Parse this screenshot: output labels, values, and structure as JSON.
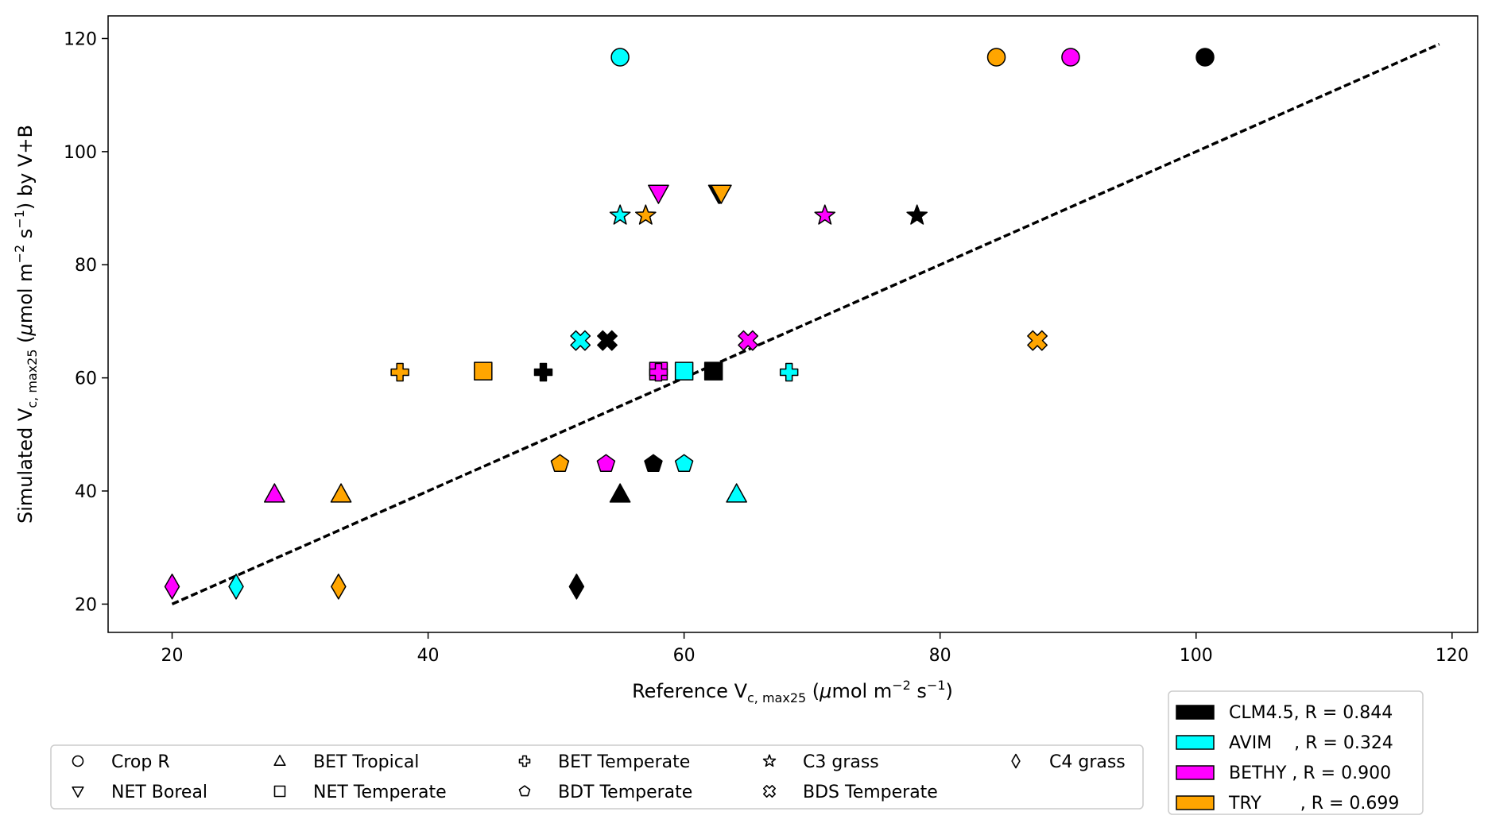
{
  "chart_data": {
    "type": "scatter",
    "title": "",
    "xlabel": {
      "prefix": "Reference V",
      "sub": "c, max25",
      "unit_open": " (",
      "mu": "μ",
      "unit_text": "mol m",
      "sup1": "−2",
      "s_text": " s",
      "sup2": "−1",
      "unit_close": ")"
    },
    "ylabel": {
      "prefix": "Simulated V",
      "sub": "c, max25",
      "unit_open": " (",
      "mu": "μ",
      "unit_text": "mol m",
      "sup1": "−2",
      "s_text": " s",
      "sup2": "−1",
      "unit_close": ")",
      "suffix": " by V+B"
    },
    "xlim": [
      15,
      122
    ],
    "ylim": [
      15,
      124
    ],
    "xticks": [
      20,
      40,
      60,
      80,
      100,
      120
    ],
    "yticks": [
      20,
      40,
      60,
      80,
      100,
      120
    ],
    "grid": false,
    "one_to_one_line": {
      "x": [
        20,
        119
      ],
      "y": [
        20,
        119
      ],
      "style": "dashed",
      "color": "#000000"
    },
    "pft_markers": [
      {
        "pft": "Crop R",
        "marker": "circle",
        "y": 116.7
      },
      {
        "pft": "NET Boreal",
        "marker": "triangle-down",
        "y": 92.7
      },
      {
        "pft": "BET Tropical",
        "marker": "triangle-up",
        "y": 39.4
      },
      {
        "pft": "NET Temperate",
        "marker": "square",
        "y": 61.2
      },
      {
        "pft": "BET Temperate",
        "marker": "plus",
        "y": 61.0
      },
      {
        "pft": "BDT Temperate",
        "marker": "pentagon",
        "y": 44.8
      },
      {
        "pft": "C3 grass",
        "marker": "star",
        "y": 88.7
      },
      {
        "pft": "BDS Temperate",
        "marker": "x",
        "y": 66.6
      },
      {
        "pft": "C4 grass",
        "marker": "diamond",
        "y": 23.1
      }
    ],
    "series": [
      {
        "name": "CLM4.5",
        "r_label": "CLM4.5, R = 0.844",
        "color": "#000000",
        "x": [
          100.7,
          62.7,
          55.0,
          62.3,
          49.0,
          57.6,
          78.2,
          54.0,
          51.6
        ]
      },
      {
        "name": "AVIM",
        "r_label": "AVIM    , R = 0.324",
        "color": "#00ffff",
        "x": [
          55.0,
          62.8,
          64.1,
          60.0,
          68.2,
          60.0,
          55.0,
          51.9,
          25.0
        ]
      },
      {
        "name": "BETHY",
        "r_label": "BETHY , R = 0.900",
        "color": "#ff00ff",
        "x": [
          90.2,
          58.0,
          28.0,
          58.0,
          58.0,
          53.9,
          71.0,
          65.0,
          20.0
        ]
      },
      {
        "name": "TRY",
        "r_label": "TRY       , R = 0.699",
        "color": "#ffa500",
        "x": [
          84.4,
          62.9,
          33.2,
          44.3,
          37.8,
          50.3,
          57.0,
          87.6,
          33.0
        ]
      }
    ],
    "pft_legend": [
      "Crop R",
      "NET Boreal",
      "BET Tropical",
      "NET Temperate",
      "BET Temperate",
      "BDT Temperate",
      "C3 grass",
      "BDS Temperate",
      "C4 grass"
    ],
    "model_legend": [
      "CLM4.5, R = 0.844",
      "AVIM    , R = 0.324",
      "BETHY , R = 0.900",
      "TRY       , R = 0.699"
    ]
  }
}
